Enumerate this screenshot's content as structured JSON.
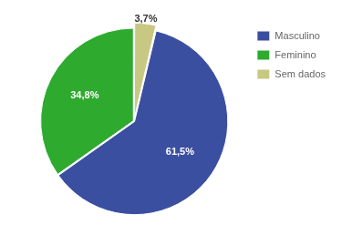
{
  "chart_data": {
    "type": "pie",
    "categories": [
      "Masculino",
      "Feminino",
      "Sem dados"
    ],
    "values": [
      61.5,
      34.8,
      3.7
    ],
    "value_labels": [
      "61,5%",
      "34,8%",
      "3,7%"
    ],
    "colors": [
      "#3a4fa0",
      "#2eaa2e",
      "#c8c882"
    ],
    "data_labels": true,
    "legend": "upper right"
  }
}
